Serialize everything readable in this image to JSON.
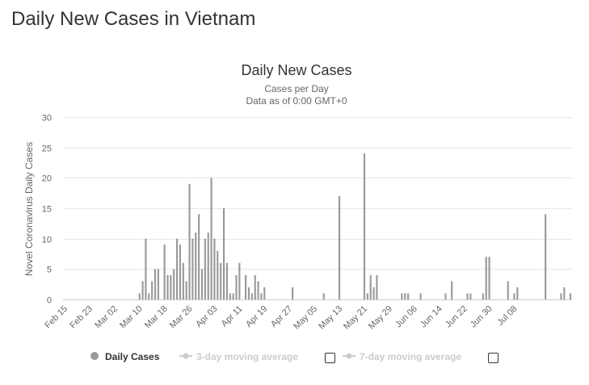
{
  "page": {
    "heading": "Daily New Cases in Vietnam"
  },
  "chart_data": {
    "type": "bar",
    "title": "Daily New Cases",
    "subtitle": "Cases per Day",
    "subtitle2": "Data as of 0:00 GMT+0",
    "ylabel": "Novel Coronavirus Daily Cases",
    "xlabel": "",
    "ylim": [
      0,
      30
    ],
    "yticks": [
      0,
      5,
      10,
      15,
      20,
      25,
      30
    ],
    "grid": true,
    "start_date": "Feb 15",
    "xtick_labels": [
      "Feb 15",
      "Feb 23",
      "Mar 02",
      "Mar 10",
      "Mar 18",
      "Mar 26",
      "Apr 03",
      "Apr 11",
      "Apr 19",
      "Apr 27",
      "May 05",
      "May 13",
      "May 21",
      "May 29",
      "Jun 06",
      "Jun 14",
      "Jun 22",
      "Jun 30",
      "Jul 08"
    ],
    "series": [
      {
        "name": "Daily Cases",
        "color": "#999999",
        "values": [
          0,
          0,
          0,
          0,
          0,
          0,
          0,
          0,
          0,
          0,
          0,
          0,
          0,
          0,
          0,
          0,
          0,
          0,
          0,
          0,
          0,
          0,
          0,
          0,
          1,
          3,
          10,
          1,
          3,
          5,
          5,
          0,
          9,
          4,
          4,
          5,
          10,
          9,
          6,
          3,
          19,
          10,
          11,
          14,
          5,
          10,
          11,
          20,
          10,
          8,
          6,
          15,
          6,
          1,
          1,
          4,
          6,
          0,
          4,
          2,
          1,
          4,
          3,
          1,
          2,
          0,
          0,
          0,
          0,
          0,
          0,
          0,
          0,
          2,
          0,
          0,
          0,
          0,
          0,
          0,
          0,
          0,
          0,
          1,
          0,
          0,
          0,
          0,
          17,
          0,
          0,
          0,
          0,
          0,
          0,
          0,
          24,
          1,
          4,
          2,
          4,
          0,
          0,
          0,
          0,
          0,
          0,
          0,
          1,
          1,
          1,
          0,
          0,
          0,
          1,
          0,
          0,
          0,
          0,
          0,
          0,
          0,
          1,
          0,
          3,
          0,
          0,
          0,
          0,
          1,
          1,
          0,
          0,
          0,
          1,
          7,
          7,
          0,
          0,
          0,
          0,
          0,
          3,
          0,
          1,
          2,
          0,
          0,
          0,
          0,
          0,
          0,
          0,
          0,
          14,
          0,
          0,
          0,
          0,
          1,
          2,
          0,
          1
        ]
      }
    ],
    "legend": {
      "placement": "bottom",
      "items": [
        {
          "label": "Daily Cases",
          "color": "#999999",
          "enabled": true
        },
        {
          "label": "3-day moving average",
          "color": "#cccccc",
          "enabled": false
        },
        {
          "label": "7-day moving average",
          "color": "#cccccc",
          "enabled": false
        }
      ]
    }
  }
}
